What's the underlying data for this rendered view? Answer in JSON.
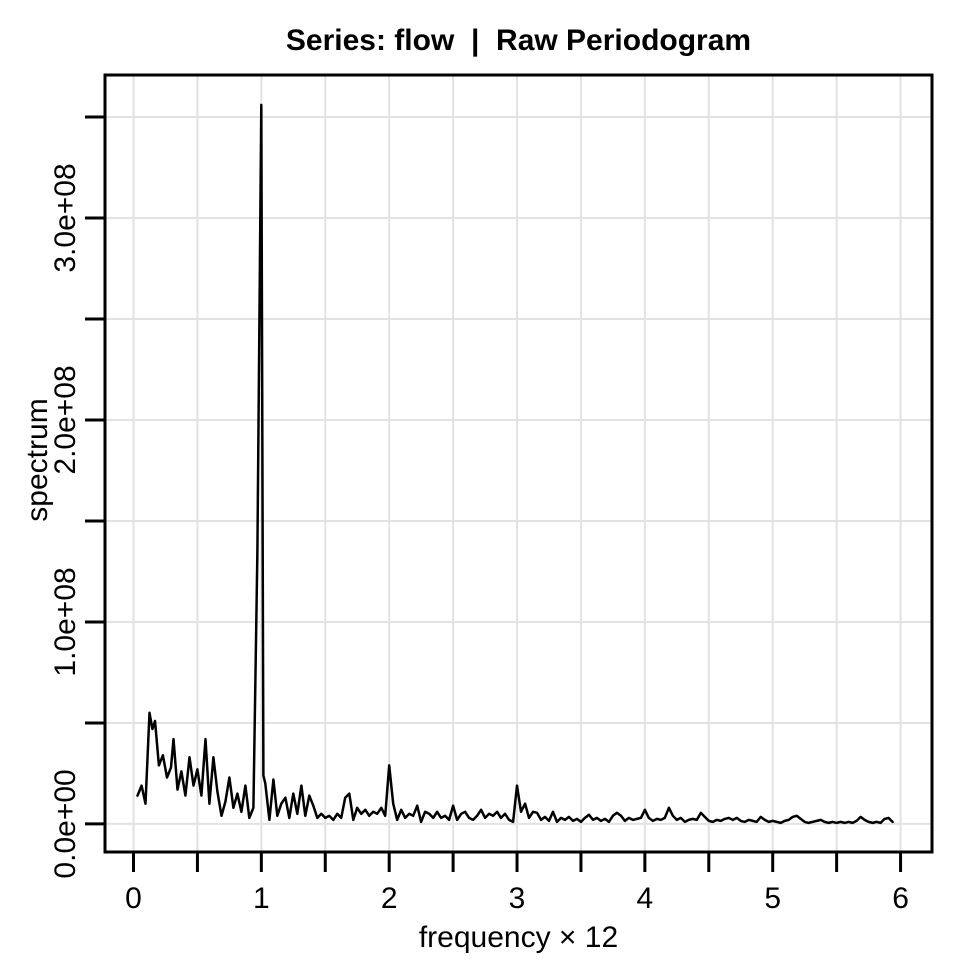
{
  "chart_data": {
    "type": "line",
    "title": "Series: flow  |  Raw Periodogram",
    "xlabel": "frequency × 12",
    "ylabel": "spectrum",
    "grid": "on",
    "legend": "none",
    "colors": {
      "line": "#000000",
      "grid": "#e2e2e2",
      "axis": "#000000",
      "background": "#ffffff",
      "text": "#000000"
    },
    "axes": {
      "x": {
        "range": [
          -0.223,
          6.246
        ],
        "tick_values": [
          0,
          0.5,
          1,
          1.5,
          2,
          2.5,
          3,
          3.5,
          4,
          4.5,
          5,
          5.5,
          6
        ],
        "labeled_ticks": {
          "values": [
            0,
            1,
            2,
            3,
            4,
            5,
            6
          ],
          "labels": [
            "0",
            "1",
            "2",
            "3",
            "4",
            "5",
            "6"
          ]
        }
      },
      "y": {
        "unit": 10000000.0,
        "range_e7": [
          -1.39,
          37.08
        ],
        "tick_values_e7": [
          0,
          5,
          10,
          15,
          20,
          25,
          30,
          35
        ],
        "labeled_ticks": {
          "values_e7": [
            0,
            10,
            20,
            30
          ],
          "labels": [
            "0.0e+00",
            "1.0e+08",
            "2.0e+08",
            "3.0e+08"
          ]
        }
      }
    },
    "series": [
      {
        "name": "flow raw periodogram",
        "y_unit": 10000000.0,
        "peak": {
          "x": 1.0,
          "value_e7": 35.6
        },
        "points": [
          [
            0.031,
            1.4
          ],
          [
            0.063,
            1.9
          ],
          [
            0.094,
            1.0
          ],
          [
            0.125,
            5.5
          ],
          [
            0.148,
            4.7
          ],
          [
            0.168,
            5.1
          ],
          [
            0.199,
            2.9
          ],
          [
            0.23,
            3.4
          ],
          [
            0.262,
            2.3
          ],
          [
            0.293,
            2.8
          ],
          [
            0.313,
            4.2
          ],
          [
            0.344,
            1.7
          ],
          [
            0.375,
            2.6
          ],
          [
            0.406,
            1.4
          ],
          [
            0.438,
            3.3
          ],
          [
            0.469,
            1.9
          ],
          [
            0.5,
            2.7
          ],
          [
            0.531,
            1.4
          ],
          [
            0.563,
            4.2
          ],
          [
            0.594,
            1.0
          ],
          [
            0.625,
            3.3
          ],
          [
            0.656,
            1.6
          ],
          [
            0.688,
            0.4
          ],
          [
            0.719,
            1.1
          ],
          [
            0.75,
            2.3
          ],
          [
            0.781,
            0.8
          ],
          [
            0.813,
            1.5
          ],
          [
            0.844,
            0.6
          ],
          [
            0.875,
            1.9
          ],
          [
            0.906,
            0.3
          ],
          [
            0.938,
            0.8
          ],
          [
            0.969,
            13.5
          ],
          [
            0.984,
            24.3
          ],
          [
            1.0,
            35.6
          ],
          [
            1.016,
            2.4
          ],
          [
            1.031,
            2.0
          ],
          [
            1.063,
            0.2
          ],
          [
            1.094,
            2.2
          ],
          [
            1.125,
            0.4
          ],
          [
            1.156,
            1.0
          ],
          [
            1.188,
            1.3
          ],
          [
            1.219,
            0.3
          ],
          [
            1.25,
            1.5
          ],
          [
            1.281,
            0.5
          ],
          [
            1.313,
            1.9
          ],
          [
            1.344,
            0.4
          ],
          [
            1.375,
            1.4
          ],
          [
            1.406,
            0.9
          ],
          [
            1.438,
            0.3
          ],
          [
            1.469,
            0.5
          ],
          [
            1.5,
            0.3
          ],
          [
            1.531,
            0.4
          ],
          [
            1.563,
            0.2
          ],
          [
            1.594,
            0.5
          ],
          [
            1.625,
            0.3
          ],
          [
            1.656,
            1.3
          ],
          [
            1.688,
            1.5
          ],
          [
            1.719,
            0.2
          ],
          [
            1.75,
            0.8
          ],
          [
            1.781,
            0.5
          ],
          [
            1.813,
            0.7
          ],
          [
            1.844,
            0.4
          ],
          [
            1.875,
            0.6
          ],
          [
            1.906,
            0.5
          ],
          [
            1.938,
            0.8
          ],
          [
            1.969,
            0.4
          ],
          [
            2.0,
            2.9
          ],
          [
            2.031,
            1.0
          ],
          [
            2.063,
            0.2
          ],
          [
            2.094,
            0.7
          ],
          [
            2.125,
            0.3
          ],
          [
            2.156,
            0.5
          ],
          [
            2.188,
            0.4
          ],
          [
            2.219,
            0.9
          ],
          [
            2.25,
            0.1
          ],
          [
            2.281,
            0.6
          ],
          [
            2.313,
            0.5
          ],
          [
            2.344,
            0.3
          ],
          [
            2.375,
            0.6
          ],
          [
            2.406,
            0.3
          ],
          [
            2.438,
            0.4
          ],
          [
            2.469,
            0.2
          ],
          [
            2.5,
            0.9
          ],
          [
            2.531,
            0.2
          ],
          [
            2.563,
            0.5
          ],
          [
            2.594,
            0.6
          ],
          [
            2.625,
            0.3
          ],
          [
            2.656,
            0.2
          ],
          [
            2.688,
            0.4
          ],
          [
            2.719,
            0.7
          ],
          [
            2.75,
            0.3
          ],
          [
            2.781,
            0.5
          ],
          [
            2.813,
            0.4
          ],
          [
            2.844,
            0.6
          ],
          [
            2.875,
            0.3
          ],
          [
            2.906,
            0.5
          ],
          [
            2.938,
            0.2
          ],
          [
            2.969,
            0.1
          ],
          [
            3.0,
            1.9
          ],
          [
            3.031,
            0.6
          ],
          [
            3.063,
            1.0
          ],
          [
            3.094,
            0.3
          ],
          [
            3.125,
            0.6
          ],
          [
            3.156,
            0.55
          ],
          [
            3.188,
            0.2
          ],
          [
            3.219,
            0.35
          ],
          [
            3.25,
            0.15
          ],
          [
            3.281,
            0.6
          ],
          [
            3.313,
            0.1
          ],
          [
            3.344,
            0.3
          ],
          [
            3.375,
            0.2
          ],
          [
            3.406,
            0.35
          ],
          [
            3.438,
            0.15
          ],
          [
            3.469,
            0.25
          ],
          [
            3.5,
            0.1
          ],
          [
            3.531,
            0.3
          ],
          [
            3.563,
            0.45
          ],
          [
            3.594,
            0.2
          ],
          [
            3.625,
            0.3
          ],
          [
            3.656,
            0.15
          ],
          [
            3.688,
            0.25
          ],
          [
            3.719,
            0.1
          ],
          [
            3.75,
            0.4
          ],
          [
            3.781,
            0.55
          ],
          [
            3.813,
            0.4
          ],
          [
            3.844,
            0.15
          ],
          [
            3.875,
            0.3
          ],
          [
            3.906,
            0.2
          ],
          [
            3.938,
            0.25
          ],
          [
            3.969,
            0.3
          ],
          [
            4.0,
            0.7
          ],
          [
            4.031,
            0.3
          ],
          [
            4.063,
            0.15
          ],
          [
            4.094,
            0.25
          ],
          [
            4.125,
            0.2
          ],
          [
            4.156,
            0.3
          ],
          [
            4.188,
            0.8
          ],
          [
            4.219,
            0.4
          ],
          [
            4.25,
            0.2
          ],
          [
            4.281,
            0.3
          ],
          [
            4.313,
            0.1
          ],
          [
            4.344,
            0.2
          ],
          [
            4.375,
            0.25
          ],
          [
            4.406,
            0.2
          ],
          [
            4.438,
            0.55
          ],
          [
            4.469,
            0.35
          ],
          [
            4.5,
            0.15
          ],
          [
            4.531,
            0.1
          ],
          [
            4.563,
            0.2
          ],
          [
            4.594,
            0.15
          ],
          [
            4.625,
            0.25
          ],
          [
            4.656,
            0.3
          ],
          [
            4.688,
            0.2
          ],
          [
            4.719,
            0.3
          ],
          [
            4.75,
            0.15
          ],
          [
            4.781,
            0.1
          ],
          [
            4.813,
            0.2
          ],
          [
            4.844,
            0.15
          ],
          [
            4.875,
            0.1
          ],
          [
            4.906,
            0.35
          ],
          [
            4.938,
            0.2
          ],
          [
            4.969,
            0.1
          ],
          [
            5.0,
            0.15
          ],
          [
            5.031,
            0.1
          ],
          [
            5.063,
            0.05
          ],
          [
            5.094,
            0.15
          ],
          [
            5.125,
            0.2
          ],
          [
            5.156,
            0.35
          ],
          [
            5.188,
            0.4
          ],
          [
            5.219,
            0.25
          ],
          [
            5.25,
            0.1
          ],
          [
            5.281,
            0.05
          ],
          [
            5.313,
            0.1
          ],
          [
            5.344,
            0.15
          ],
          [
            5.375,
            0.2
          ],
          [
            5.406,
            0.1
          ],
          [
            5.438,
            0.05
          ],
          [
            5.469,
            0.1
          ],
          [
            5.5,
            0.05
          ],
          [
            5.531,
            0.1
          ],
          [
            5.563,
            0.05
          ],
          [
            5.594,
            0.1
          ],
          [
            5.625,
            0.05
          ],
          [
            5.656,
            0.15
          ],
          [
            5.688,
            0.35
          ],
          [
            5.719,
            0.2
          ],
          [
            5.75,
            0.1
          ],
          [
            5.781,
            0.05
          ],
          [
            5.813,
            0.1
          ],
          [
            5.844,
            0.05
          ],
          [
            5.875,
            0.25
          ],
          [
            5.906,
            0.3
          ],
          [
            5.938,
            0.1
          ]
        ]
      }
    ]
  }
}
